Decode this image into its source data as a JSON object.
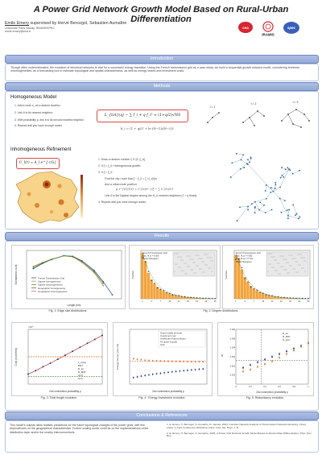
{
  "header": {
    "title": "A Power Grid Network Growth Model Based on Rural-Urban Differentiation",
    "authors_lead": "Emile Emery",
    "authors_rest": " supervised by Hervé Bercegol, Sebastien Aumaître",
    "affil1": "Université Paris Saclay, IRAMIS/SPEC",
    "affil2": "emile.emery@cea.fr",
    "logos": {
      "cea": "cea",
      "iramis": "IRAMIS",
      "spec": "spec"
    }
  },
  "sections": {
    "intro": "Introduction",
    "methods": "Methods",
    "results": "Results",
    "conclusion": "Conclusions & References"
  },
  "intro_text": "Though often underestimated, the evolution of electrical networks is vital for a successful energy transition. Using the French transmission grid as a case study, we build a sequential growth network model, considering territorial inhomogeneities, as a forecasting tool to estimate topological and spatial characteristics, as well as energy losses and investment costs.",
  "homogeneous": {
    "heading": "Homogeneous Model",
    "steps": [
      "1. Add a node n₁ at a random location.",
      "2. Link it to its nearest neighbor.",
      "3. With probability p, link it to its second nearest neighbor.",
      "4. Repeat until you have enough nodes."
    ],
    "formula_main": "L_{tot}(q) ∼ ∑ f_i + q f_i² ≈ (1+q/2)√NS",
    "formula_small": "b_i = (1 + q)(1 + ln (N−1)/(N−2))",
    "net_labels": [
      "t = 1",
      "t = 2",
      "t = 3"
    ]
  },
  "inhomogeneous": {
    "heading": "Inhomogeneous Refinement",
    "formula_box": "U_l(r) ∝ A_l e^{-r/λ}",
    "steps": [
      "1. Draw a random number ξ ∈ [0, ξ_U].",
      "2. If ξ < ξ_0: Homogeneous growth.",
      "3. If ξ > ξ_0:",
      "Find the city i such that ξ − ξ_0 < ∑ U_l(r)/r²",
      "And a urban node position:",
      "Link it to the highest degree among the N_U nearest neighbors (1 + q times).",
      "4. Repeat until you have enough nodes."
    ],
    "formula_p": "p_i^{(U)}(r) = U_l(r)/r² / (ξ − ∑ U_l(r)/r²)"
  },
  "results": {
    "fig1": {
      "caption": "Fig. 1: Edge size distributions",
      "xlabel": "Length (km)",
      "ylabel": "Normalized count",
      "legend": [
        "French Transmission Grid",
        "Square homogeneous",
        "Square inhomogeneous",
        "Geographic homogeneous",
        "Geographic inhomogeneous"
      ]
    },
    "fig2": {
      "caption": "Fig. 2: Degree distributions",
      "left_legend": [
        "French Transmission Grid",
        "Exp. fit (c = 0.80)",
        "Model histogram"
      ],
      "right_legend": [
        "French Transmission Grid",
        "Exp. fit (c = 0.85)",
        "Exp. fit (p = 0.7%)",
        "Model histogram"
      ],
      "ylabel": "Number"
    },
    "fig3": {
      "caption": "Fig. 3: Total length evolution",
      "xlabel": "2nd connection probability p",
      "ylabel": "Cost (in meters)",
      "exp": "×10⁶",
      "legend": [
        "L_tot(q)",
        "MST",
        "R_tot",
        "R_MST",
        "Grid",
        "Grid"
      ]
    },
    "fig4": {
      "caption": "Fig. 4 : Energy investment evolution",
      "xlabel": "2nd connection probability p",
      "ylabel": "Energy lost per year (%)",
      "legend": [
        "Grand-maille pb lower",
        "Investment cost",
        "Investment final evolution",
        "Fit (lower bound)",
        "Grid"
      ]
    },
    "fig5": {
      "caption": "Fig. 5: Redundancy evolution",
      "xlabel": "2nd connection probability p",
      "ylabel": "R",
      "legend": [
        "R_tot",
        "R_MST",
        "R_grid"
      ]
    }
  },
  "conclusion_text": "This model's outputs allow realistic predictions for the future topological changes of the power grids, with few dependences on the geographical characteristics. Further scaling works could be on the implementations of the distribution layer and/or the nearby interconnections.",
  "references": [
    "1. E. Emery, H. Bercegol, S. Aumaître, R. Janvier, 2024, Complex Network Analysis of Transmission Networks Evolving, Cloud power, A Joint Conference Workshop, Paris, Grid, Ser. Phys. J. B.",
    "2. E. Emery, H. Bercegol, S. Aumaître, 2025, A Power Grid Network Growth Model Based on Rural-Urban Differentiation, Phys. Rev. Res."
  ],
  "chart_data": [
    {
      "type": "line",
      "title": "",
      "xlabel": "Length (km)",
      "ylabel": "Normalized count",
      "scale": "log-log",
      "series": [
        {
          "name": "French Transmission Grid",
          "x": [
            0.5,
            1,
            2,
            5,
            10,
            20,
            50,
            100,
            200
          ],
          "y": [
            0.02,
            0.05,
            0.1,
            0.2,
            0.18,
            0.08,
            0.015,
            0.002,
            0.0002
          ]
        },
        {
          "name": "Square homogeneous",
          "x": [
            0.5,
            1,
            2,
            5,
            10,
            20,
            50,
            100
          ],
          "y": [
            0.03,
            0.06,
            0.11,
            0.19,
            0.16,
            0.06,
            0.01,
            0.001
          ]
        },
        {
          "name": "Geographic inhomogeneous",
          "x": [
            0.5,
            1,
            2,
            5,
            10,
            20,
            50,
            100
          ],
          "y": [
            0.025,
            0.055,
            0.1,
            0.2,
            0.17,
            0.07,
            0.012,
            0.0015
          ]
        }
      ]
    },
    {
      "type": "bar",
      "title": "",
      "ylabel": "Number",
      "categories": [
        "1",
        "2",
        "3",
        "4",
        "5",
        "6",
        "7",
        "8",
        "9",
        "10",
        "11",
        "12",
        "13",
        "14",
        "15",
        "16",
        "17",
        "18",
        "19",
        "20",
        "21",
        "22",
        "23",
        "24",
        "25"
      ],
      "series": [
        {
          "name": "Model histogram",
          "values": [
            1000,
            820,
            560,
            420,
            330,
            260,
            210,
            170,
            140,
            115,
            95,
            80,
            65,
            55,
            45,
            38,
            32,
            26,
            22,
            18,
            15,
            12,
            10,
            8,
            6
          ]
        }
      ]
    },
    {
      "type": "bar",
      "title": "",
      "ylabel": "Number",
      "categories": [
        "1",
        "2",
        "3",
        "4",
        "5",
        "6",
        "7",
        "8",
        "9",
        "10",
        "11",
        "12",
        "13",
        "14",
        "15",
        "16",
        "17",
        "18",
        "19",
        "20",
        "21",
        "22",
        "23",
        "24",
        "25"
      ],
      "series": [
        {
          "name": "Model histogram",
          "values": [
            950,
            880,
            640,
            470,
            360,
            280,
            220,
            180,
            145,
            118,
            96,
            78,
            64,
            52,
            43,
            36,
            30,
            24,
            20,
            16,
            13,
            11,
            9,
            7,
            5
          ]
        }
      ]
    },
    {
      "type": "line",
      "title": "",
      "xlabel": "2nd connection probability p",
      "ylabel": "Cost (in meters)",
      "series": [
        {
          "name": "L_tot(q)",
          "x": [
            0,
            0.1,
            0.2,
            0.3,
            0.4,
            0.5,
            0.6,
            0.7,
            0.8,
            0.9,
            1.0
          ],
          "y": [
            1.0,
            1.07,
            1.15,
            1.22,
            1.3,
            1.38,
            1.46,
            1.54,
            1.62,
            1.7,
            1.78
          ]
        },
        {
          "name": "MST",
          "x": [
            0,
            1.0
          ],
          "y": [
            0.95,
            0.95
          ]
        },
        {
          "name": "Grid",
          "x": [
            0,
            1.0
          ],
          "y": [
            1.35,
            1.35
          ]
        }
      ],
      "ylim": [
        0.8,
        1.9
      ],
      "xlim": [
        0,
        1
      ]
    },
    {
      "type": "scatter",
      "title": "",
      "xlabel": "2nd connection probability p",
      "ylabel": "Energy lost per year (%)",
      "series": [
        {
          "name": "Investment cost",
          "x": [
            0.05,
            0.1,
            0.15,
            0.2,
            0.25,
            0.3,
            0.35,
            0.4,
            0.45,
            0.5,
            0.55,
            0.6,
            0.65,
            0.7,
            0.75,
            0.8,
            0.85,
            0.9,
            0.95
          ],
          "y": [
            4.5,
            4.2,
            4.0,
            3.8,
            3.7,
            3.6,
            3.55,
            3.5,
            3.45,
            3.4,
            3.38,
            3.35,
            3.33,
            3.3,
            3.28,
            3.26,
            3.25,
            3.24,
            3.23
          ]
        },
        {
          "name": "Investment final evolution",
          "x": [
            0.05,
            0.1,
            0.15,
            0.2,
            0.25,
            0.3,
            0.35,
            0.4,
            0.45,
            0.5,
            0.55,
            0.6,
            0.65,
            0.7,
            0.75,
            0.8,
            0.85,
            0.9,
            0.95
          ],
          "y": [
            0.6,
            0.65,
            0.7,
            0.75,
            0.8,
            0.85,
            0.9,
            0.95,
            1.0,
            1.05,
            1.1,
            1.15,
            1.2,
            1.25,
            1.3,
            1.35,
            1.4,
            1.45,
            1.5
          ]
        }
      ],
      "ylim": [
        0,
        100
      ],
      "scale": "log-y"
    },
    {
      "type": "scatter",
      "title": "",
      "xlabel": "2nd connection probability p",
      "ylabel": "R",
      "series": [
        {
          "name": "R_tot",
          "x": [
            0.1,
            0.2,
            0.3,
            0.4,
            0.5,
            0.6,
            0.7,
            0.8,
            0.9,
            1.0
          ],
          "y": [
            0.0018,
            0.0021,
            0.0024,
            0.0027,
            0.003,
            0.0033,
            0.0036,
            0.0039,
            0.0042,
            0.0045
          ]
        },
        {
          "name": "R_MST",
          "x": [
            0.1,
            0.2,
            0.3,
            0.4,
            0.5,
            0.6,
            0.7,
            0.8,
            0.9,
            1.0
          ],
          "y": [
            0.0014,
            0.0016,
            0.0019,
            0.0022,
            0.0025,
            0.0029,
            0.0033,
            0.0037,
            0.0041,
            0.0045
          ]
        }
      ],
      "ylim": [
        0,
        0.006
      ],
      "xlim": [
        0,
        1
      ]
    }
  ]
}
